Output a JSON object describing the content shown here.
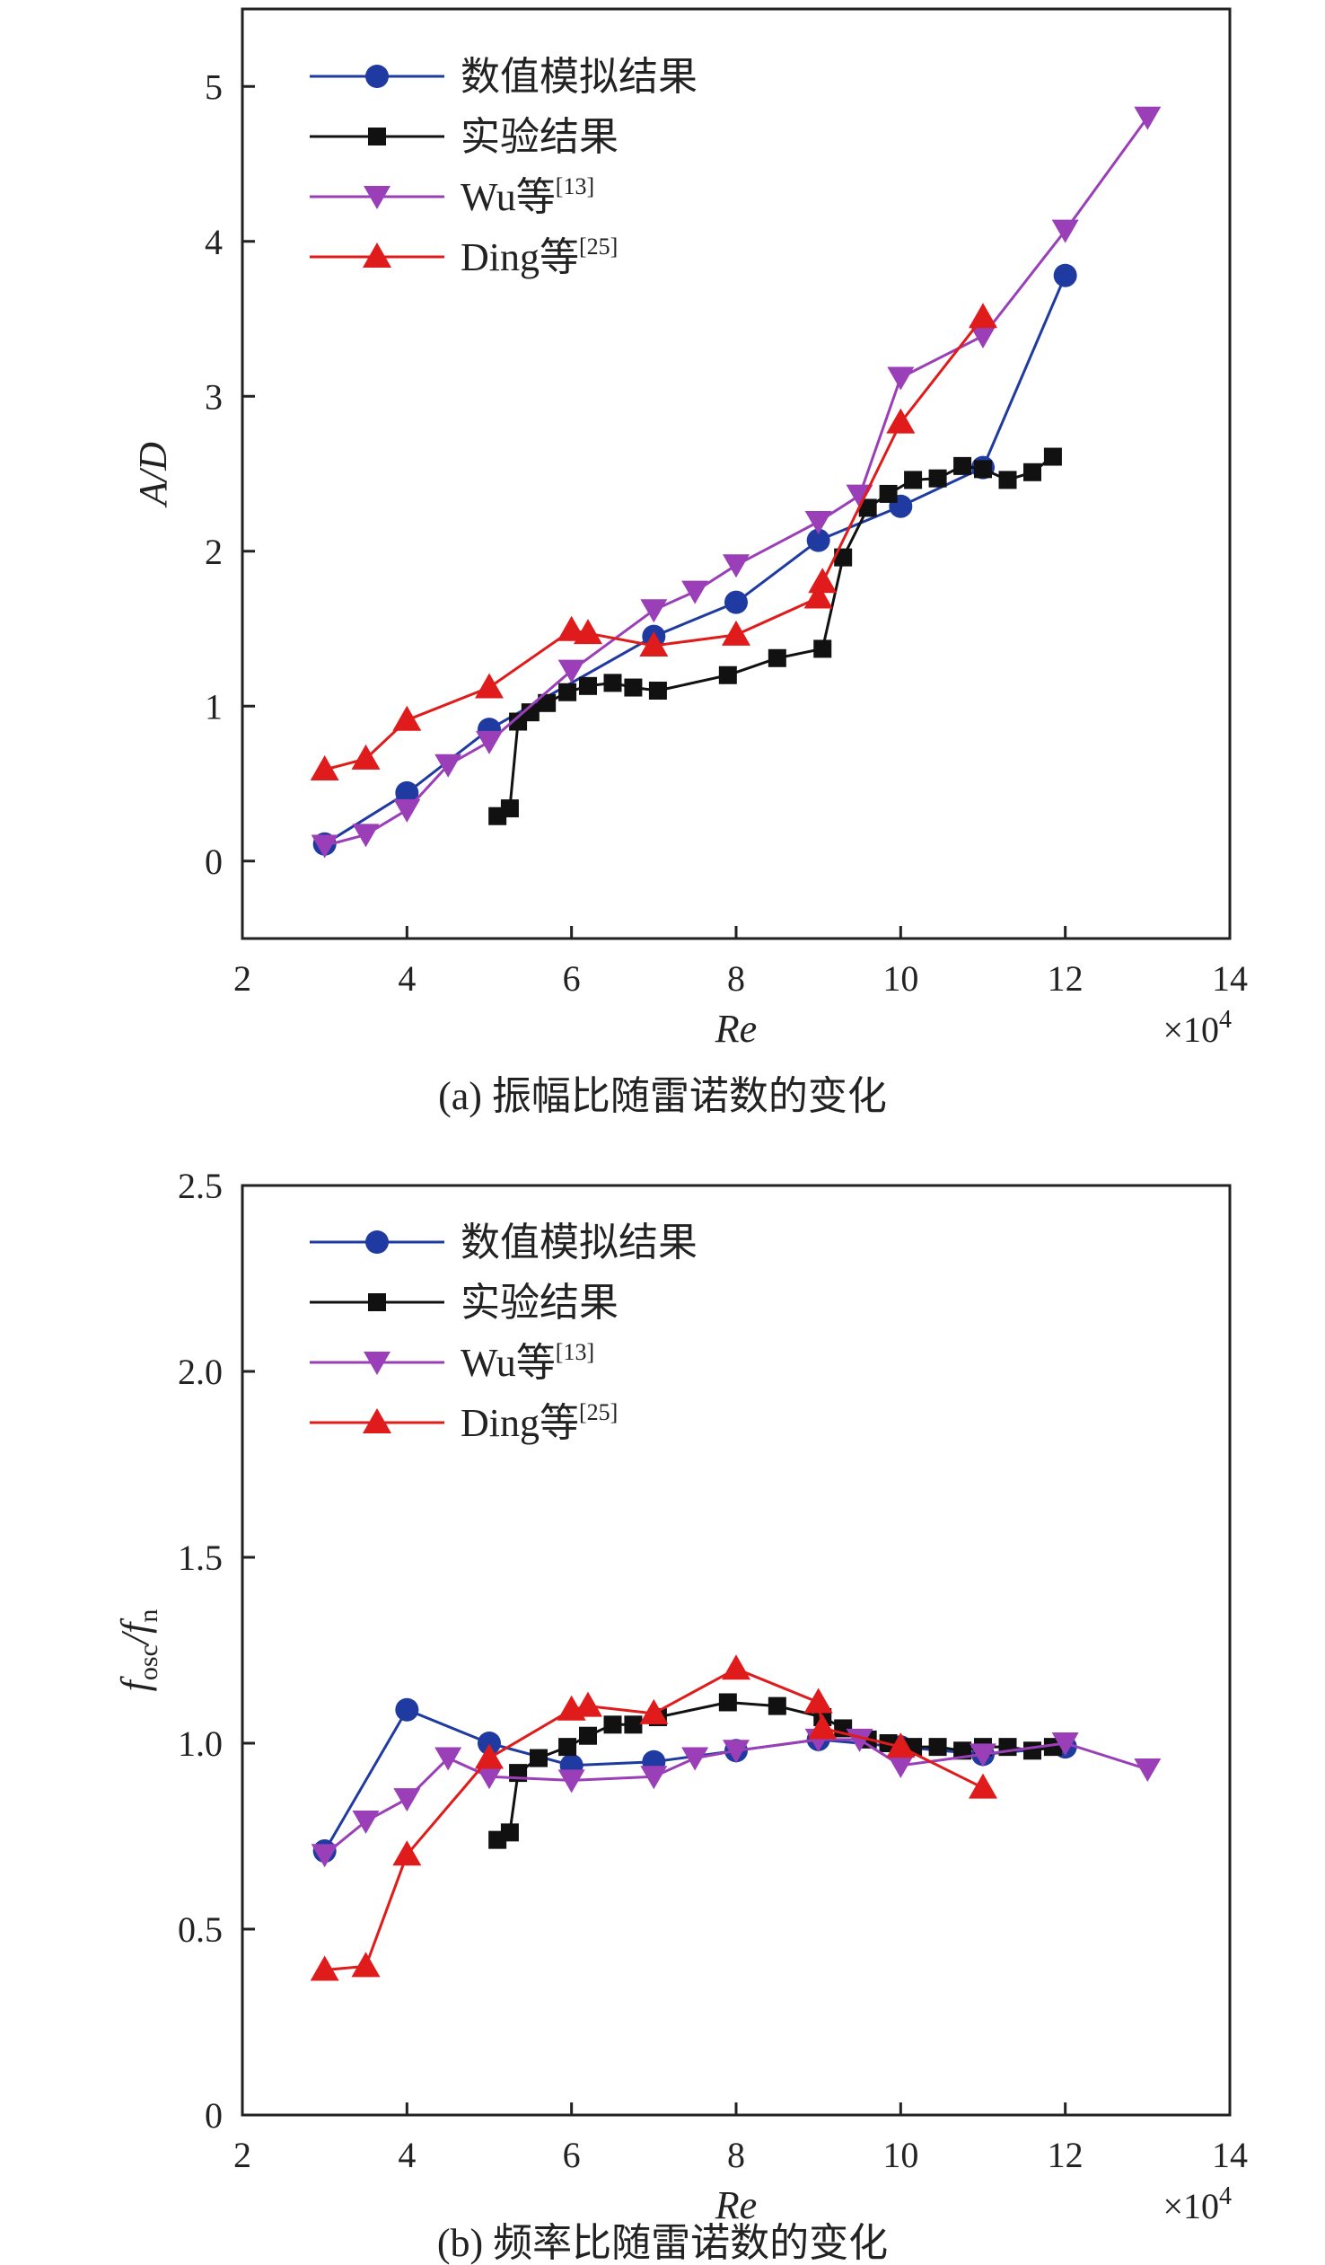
{
  "panels": [
    {
      "caption": "(a) 振幅比随雷诺数的变化",
      "x_label": "Re",
      "x_multiplier": "×10",
      "x_multiplier_exp": "4",
      "y_label": "A/D"
    },
    {
      "caption": "(b) 频率比随雷诺数的变化",
      "x_label": "Re",
      "x_multiplier": "×10",
      "x_multiplier_exp": "4",
      "y_label_main": "f",
      "y_label_sub1": "osc",
      "y_label_slash": "/f",
      "y_label_sub2": "n"
    }
  ],
  "chart_data": [
    {
      "type": "line",
      "title": "(a) 振幅比随雷诺数的变化",
      "xlabel": "Re",
      "ylabel": "A/D",
      "x_scale_note": "×10^4",
      "xlim": [
        2,
        14
      ],
      "ylim": [
        -0.5,
        5.5
      ],
      "xticks": [
        "2",
        "4",
        "6",
        "8",
        "10",
        "12",
        "14"
      ],
      "yticks": [
        "0",
        "1",
        "2",
        "3",
        "4",
        "5"
      ],
      "legend_position": "top-left",
      "series": [
        {
          "name": "数值模拟结果",
          "ref": "",
          "marker": "circle",
          "color": "#1f3aa0",
          "points": [
            [
              3,
              0.11
            ],
            [
              4,
              0.44
            ],
            [
              5,
              0.85
            ],
            [
              7,
              1.45
            ],
            [
              8,
              1.67
            ],
            [
              9,
              2.07
            ],
            [
              10,
              2.29
            ],
            [
              11,
              2.54
            ],
            [
              12,
              3.78
            ]
          ]
        },
        {
          "name": "实验结果",
          "ref": "",
          "marker": "square",
          "color": "#111111",
          "points": [
            [
              5.1,
              0.29
            ],
            [
              5.25,
              0.34
            ],
            [
              5.35,
              0.9
            ],
            [
              5.5,
              0.96
            ],
            [
              5.7,
              1.02
            ],
            [
              5.95,
              1.09
            ],
            [
              6.2,
              1.13
            ],
            [
              6.5,
              1.15
            ],
            [
              6.75,
              1.12
            ],
            [
              7.05,
              1.1
            ],
            [
              7.9,
              1.2
            ],
            [
              8.5,
              1.31
            ],
            [
              9.05,
              1.37
            ],
            [
              9.3,
              1.96
            ],
            [
              9.6,
              2.28
            ],
            [
              9.85,
              2.37
            ],
            [
              10.15,
              2.46
            ],
            [
              10.45,
              2.47
            ],
            [
              10.75,
              2.55
            ],
            [
              11,
              2.53
            ],
            [
              11.3,
              2.46
            ],
            [
              11.6,
              2.51
            ],
            [
              11.85,
              2.61
            ]
          ]
        },
        {
          "name": "Wu等",
          "ref": "[13]",
          "marker": "triangle-down",
          "color": "#9a3fb8",
          "points": [
            [
              3,
              0.1
            ],
            [
              3.5,
              0.17
            ],
            [
              4,
              0.33
            ],
            [
              4.5,
              0.62
            ],
            [
              5,
              0.77
            ],
            [
              6,
              1.23
            ],
            [
              7,
              1.62
            ],
            [
              7.5,
              1.74
            ],
            [
              8,
              1.91
            ],
            [
              9,
              2.19
            ],
            [
              9.5,
              2.36
            ],
            [
              10,
              3.12
            ],
            [
              11,
              3.39
            ],
            [
              12,
              4.07
            ],
            [
              13,
              4.8
            ]
          ]
        },
        {
          "name": "Ding等",
          "ref": "[25]",
          "marker": "triangle-up",
          "color": "#e01b1b",
          "points": [
            [
              3,
              0.59
            ],
            [
              3.5,
              0.66
            ],
            [
              4,
              0.91
            ],
            [
              5,
              1.12
            ],
            [
              6,
              1.49
            ],
            [
              6.2,
              1.47
            ],
            [
              7,
              1.39
            ],
            [
              8,
              1.46
            ],
            [
              9,
              1.7
            ],
            [
              9.05,
              1.8
            ],
            [
              10,
              2.83
            ],
            [
              11,
              3.51
            ]
          ]
        }
      ]
    },
    {
      "type": "line",
      "title": "(b) 频率比随雷诺数的变化",
      "xlabel": "Re",
      "ylabel": "fosc/fn",
      "x_scale_note": "×10^4",
      "xlim": [
        2,
        14
      ],
      "ylim": [
        0,
        2.5
      ],
      "xticks": [
        "2",
        "4",
        "6",
        "8",
        "10",
        "12",
        "14"
      ],
      "yticks": [
        "0",
        "0.5",
        "1.0",
        "1.5",
        "2.0",
        "2.5"
      ],
      "legend_position": "top-left",
      "series": [
        {
          "name": "数值模拟结果",
          "ref": "",
          "marker": "circle",
          "color": "#1f3aa0",
          "points": [
            [
              3,
              0.71
            ],
            [
              4,
              1.09
            ],
            [
              5,
              1.0
            ],
            [
              6,
              0.94
            ],
            [
              7,
              0.95
            ],
            [
              8,
              0.98
            ],
            [
              9,
              1.01
            ],
            [
              10,
              0.99
            ],
            [
              11,
              0.97
            ],
            [
              12,
              0.99
            ]
          ]
        },
        {
          "name": "实验结果",
          "ref": "",
          "marker": "square",
          "color": "#111111",
          "points": [
            [
              5.1,
              0.74
            ],
            [
              5.25,
              0.76
            ],
            [
              5.35,
              0.92
            ],
            [
              5.6,
              0.96
            ],
            [
              5.95,
              0.99
            ],
            [
              6.2,
              1.02
            ],
            [
              6.5,
              1.05
            ],
            [
              6.75,
              1.05
            ],
            [
              7.05,
              1.07
            ],
            [
              7.9,
              1.11
            ],
            [
              8.5,
              1.1
            ],
            [
              9.05,
              1.07
            ],
            [
              9.3,
              1.04
            ],
            [
              9.6,
              1.01
            ],
            [
              9.85,
              1.0
            ],
            [
              10.15,
              0.99
            ],
            [
              10.45,
              0.99
            ],
            [
              10.75,
              0.98
            ],
            [
              11,
              0.99
            ],
            [
              11.3,
              0.99
            ],
            [
              11.6,
              0.98
            ],
            [
              11.85,
              0.99
            ]
          ]
        },
        {
          "name": "Wu等",
          "ref": "[13]",
          "marker": "triangle-down",
          "color": "#9a3fb8",
          "points": [
            [
              3,
              0.7
            ],
            [
              3.5,
              0.79
            ],
            [
              4,
              0.85
            ],
            [
              4.5,
              0.96
            ],
            [
              5,
              0.91
            ],
            [
              6,
              0.9
            ],
            [
              7,
              0.91
            ],
            [
              7.5,
              0.96
            ],
            [
              8,
              0.98
            ],
            [
              9,
              1.01
            ],
            [
              9.5,
              1.01
            ],
            [
              10,
              0.94
            ],
            [
              11,
              0.97
            ],
            [
              12,
              1.0
            ],
            [
              13,
              0.93
            ]
          ]
        },
        {
          "name": "Ding等",
          "ref": "[25]",
          "marker": "triangle-up",
          "color": "#e01b1b",
          "points": [
            [
              3,
              0.39
            ],
            [
              3.5,
              0.4
            ],
            [
              4,
              0.7
            ],
            [
              5,
              0.96
            ],
            [
              6,
              1.09
            ],
            [
              6.2,
              1.1
            ],
            [
              7,
              1.08
            ],
            [
              8,
              1.2
            ],
            [
              9,
              1.11
            ],
            [
              9.05,
              1.04
            ],
            [
              10,
              0.99
            ],
            [
              11,
              0.88
            ]
          ]
        }
      ]
    }
  ]
}
